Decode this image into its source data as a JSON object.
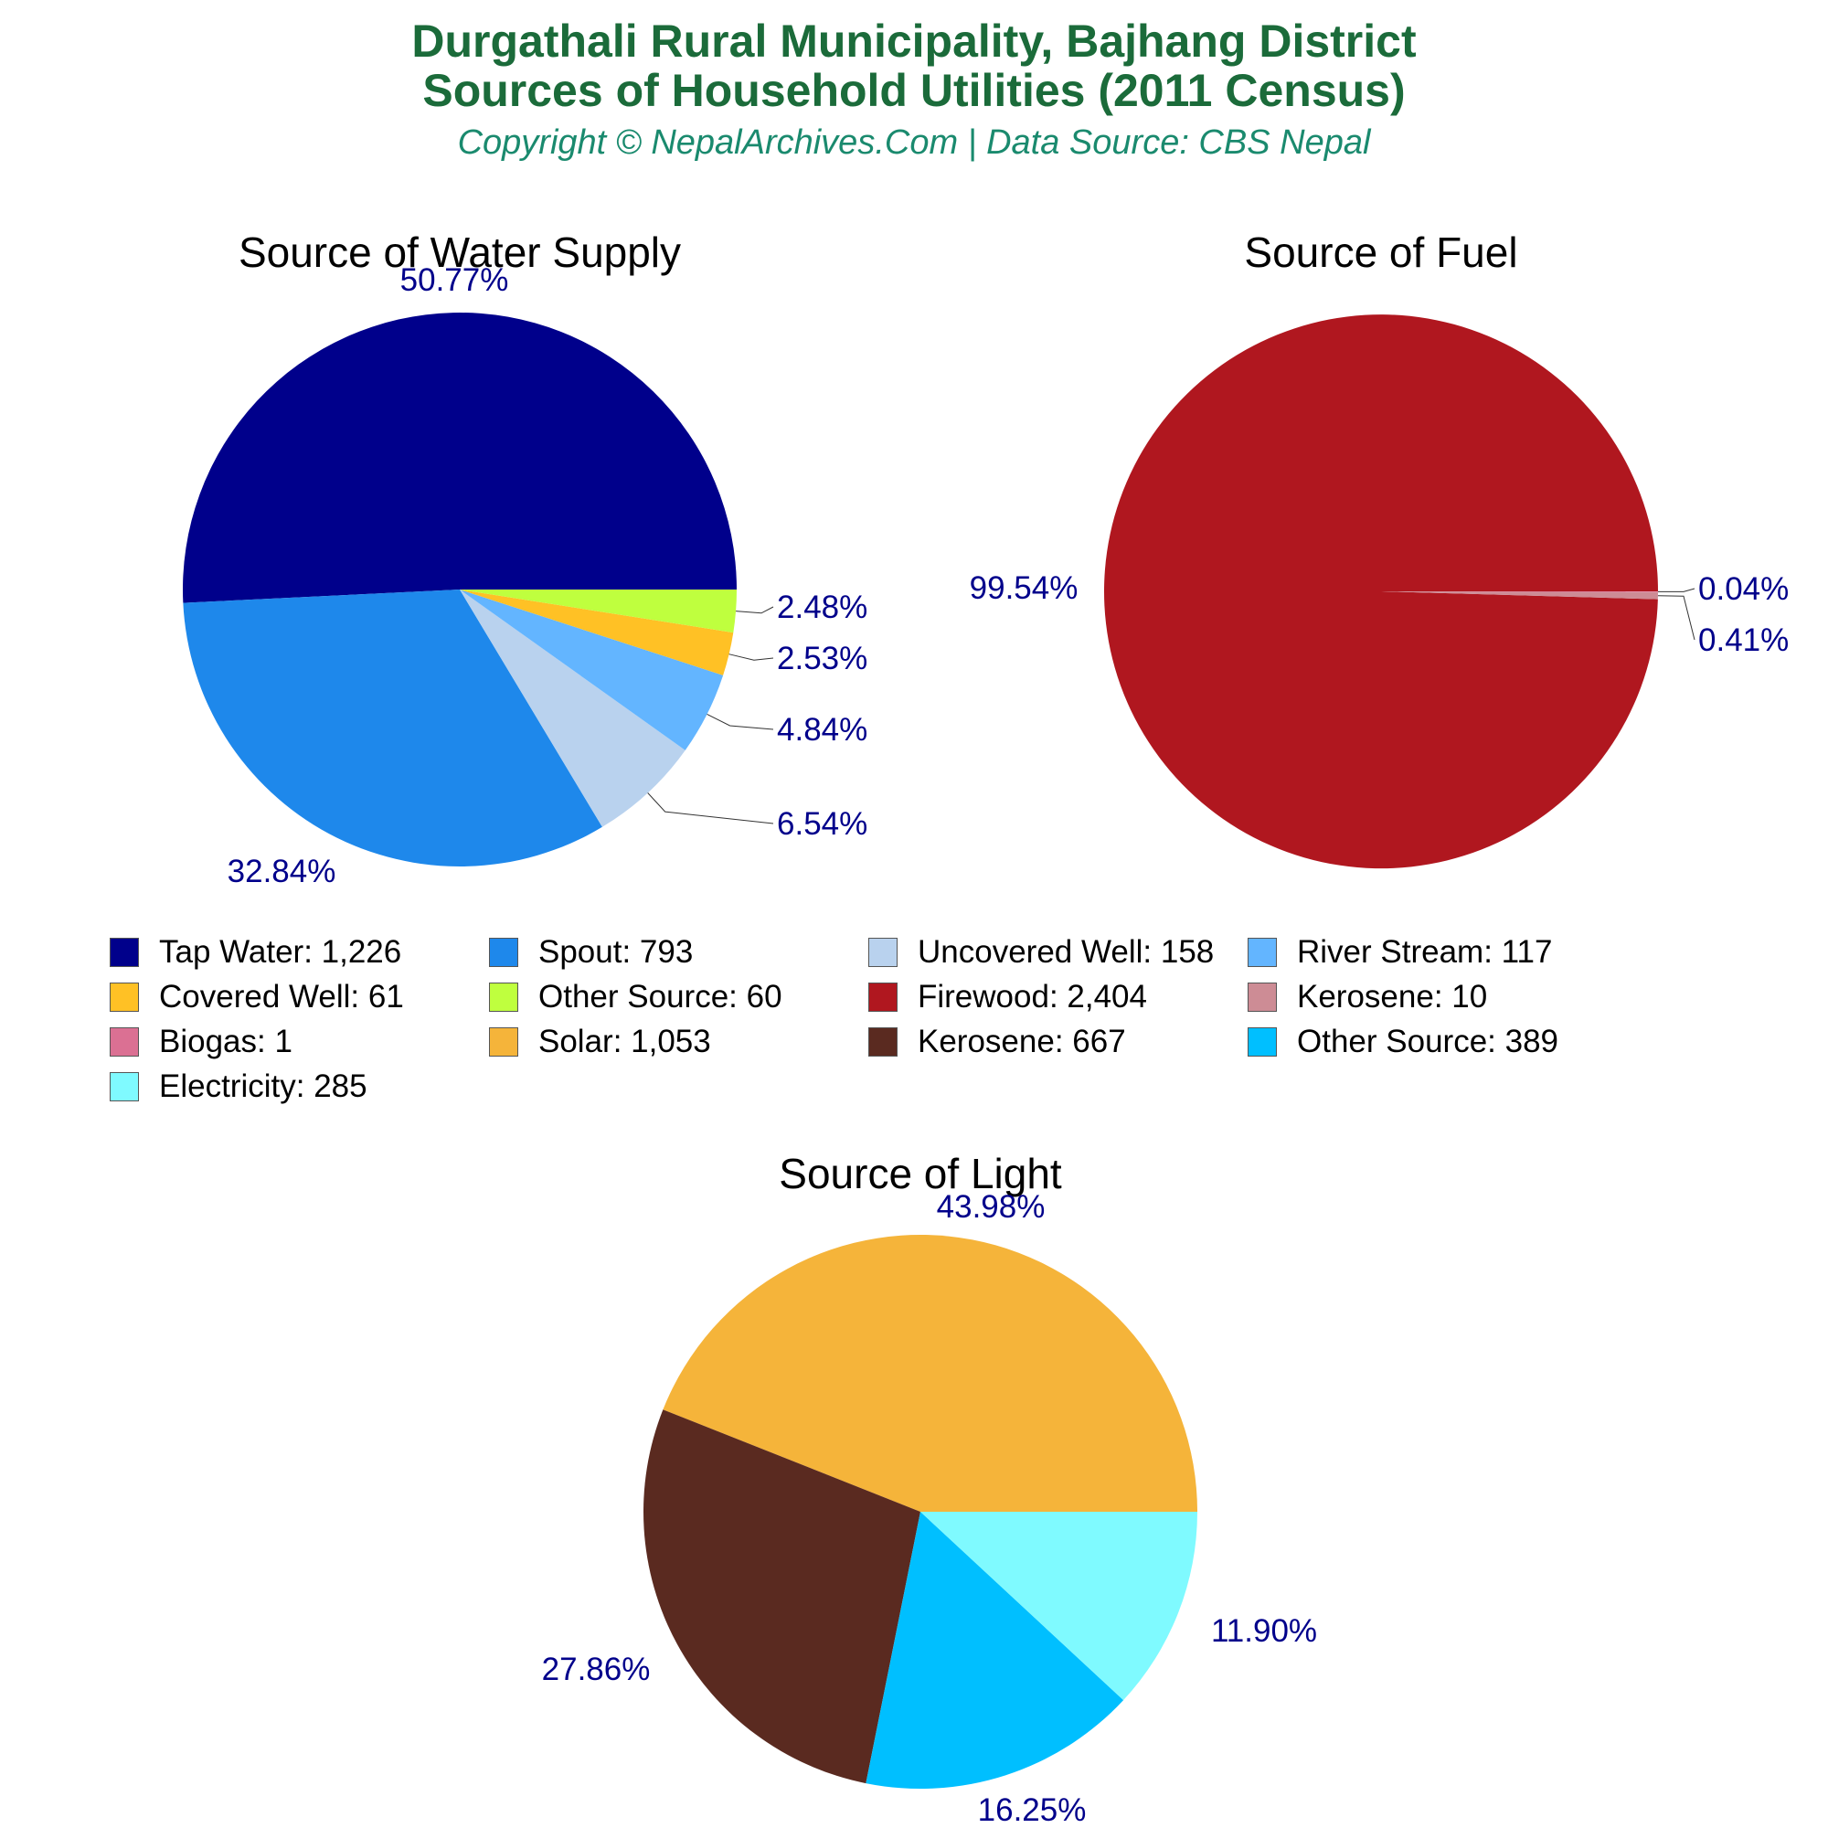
{
  "header": {
    "title_line1": "Durgathali Rural Municipality, Bajhang District",
    "title_line2": "Sources of Household Utilities (2011 Census)",
    "subtitle": "Copyright © NepalArchives.Com | Data Source: CBS Nepal"
  },
  "chart_data": [
    {
      "type": "pie",
      "title": "Source of Water Supply",
      "slices": [
        {
          "label": "Tap Water",
          "value": 1226,
          "percent": "50.77%",
          "color": "#00008b"
        },
        {
          "label": "Spout",
          "value": 793,
          "percent": "32.84%",
          "color": "#1e88eb"
        },
        {
          "label": "Uncovered Well",
          "value": 158,
          "percent": "6.54%",
          "color": "#b9d2ee"
        },
        {
          "label": "River Stream",
          "value": 117,
          "percent": "4.84%",
          "color": "#63b5ff"
        },
        {
          "label": "Covered Well",
          "value": 61,
          "percent": "2.53%",
          "color": "#ffc125"
        },
        {
          "label": "Other Source",
          "value": 60,
          "percent": "2.48%",
          "color": "#bfff3e"
        }
      ]
    },
    {
      "type": "pie",
      "title": "Source of Fuel",
      "slices": [
        {
          "label": "Firewood",
          "value": 2404,
          "percent": "99.54%",
          "color": "#b0171f"
        },
        {
          "label": "Kerosene",
          "value": 10,
          "percent": "0.41%",
          "color": "#cd8c95"
        },
        {
          "label": "Biogas",
          "value": 1,
          "percent": "0.04%",
          "color": "#db7093"
        }
      ]
    },
    {
      "type": "pie",
      "title": "Source of Light",
      "slices": [
        {
          "label": "Solar",
          "value": 1053,
          "percent": "43.98%",
          "color": "#f5b43a"
        },
        {
          "label": "Kerosene",
          "value": 667,
          "percent": "27.86%",
          "color": "#5a2a20"
        },
        {
          "label": "Other Source",
          "value": 389,
          "percent": "16.25%",
          "color": "#00bfff"
        },
        {
          "label": "Electricity",
          "value": 285,
          "percent": "11.90%",
          "color": "#7ffaff"
        }
      ]
    }
  ],
  "legend": [
    {
      "label": "Tap Water: 1,226",
      "color": "#00008b"
    },
    {
      "label": "Spout: 793",
      "color": "#1e88eb"
    },
    {
      "label": "Uncovered Well: 158",
      "color": "#b9d2ee"
    },
    {
      "label": "River Stream: 117",
      "color": "#63b5ff"
    },
    {
      "label": "Covered Well: 61",
      "color": "#ffc125"
    },
    {
      "label": "Other Source: 60",
      "color": "#bfff3e"
    },
    {
      "label": "Firewood: 2,404",
      "color": "#b0171f"
    },
    {
      "label": "Kerosene: 10",
      "color": "#cd8c95"
    },
    {
      "label": "Biogas: 1",
      "color": "#db7093"
    },
    {
      "label": "Solar: 1,053",
      "color": "#f5b43a"
    },
    {
      "label": "Kerosene: 667",
      "color": "#5a2a20"
    },
    {
      "label": "Other Source: 389",
      "color": "#00bfff"
    },
    {
      "label": "Electricity: 285",
      "color": "#7ffaff"
    }
  ],
  "colors": {
    "title": "#1b6b3a",
    "subtitle": "#1a8a6e",
    "percent_label": "#00008b"
  }
}
